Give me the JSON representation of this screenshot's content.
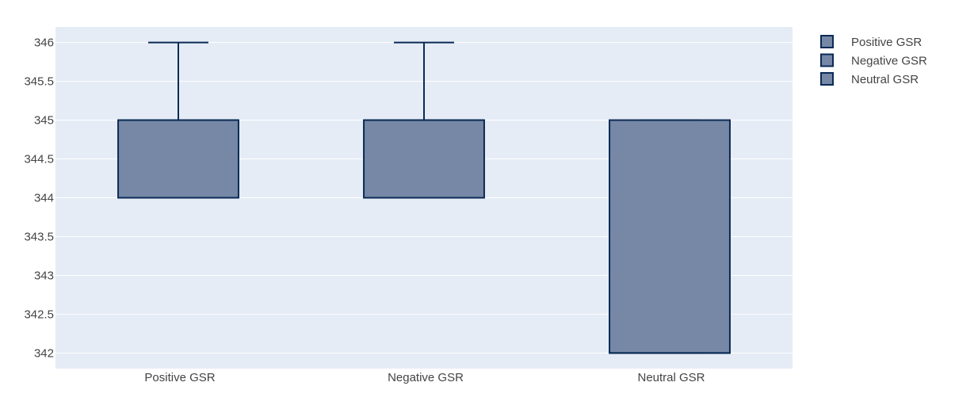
{
  "chart_data": {
    "type": "box",
    "title": "",
    "xlabel": "",
    "ylabel": "",
    "categories": [
      "Positive GSR",
      "Negative GSR",
      "Neutral GSR"
    ],
    "series": [
      {
        "name": "Positive GSR",
        "min": 344,
        "q1": 344,
        "median": 345,
        "q3": 345,
        "max": 346
      },
      {
        "name": "Negative GSR",
        "min": 344,
        "q1": 344,
        "median": 345,
        "q3": 345,
        "max": 346
      },
      {
        "name": "Neutral GSR",
        "min": 342,
        "q1": 342,
        "median": 342,
        "q3": 345,
        "max": 345
      }
    ],
    "ylim": [
      341.8,
      346.2
    ],
    "yticks": [
      342,
      342.5,
      343,
      343.5,
      344,
      344.5,
      345,
      345.5,
      346
    ],
    "ytick_labels": [
      "342",
      "342.5",
      "343",
      "343.5",
      "344",
      "344.5",
      "345",
      "345.5",
      "346"
    ],
    "grid": true,
    "legend": {
      "position": "top-right",
      "entries": [
        "Positive GSR",
        "Negative GSR",
        "Neutral GSR"
      ]
    },
    "colors": {
      "plot_bg": "#e5ecf6",
      "grid": "#ffffff",
      "box_fill": "#7688a5",
      "box_line": "#0b2a55",
      "text": "#444444"
    }
  }
}
